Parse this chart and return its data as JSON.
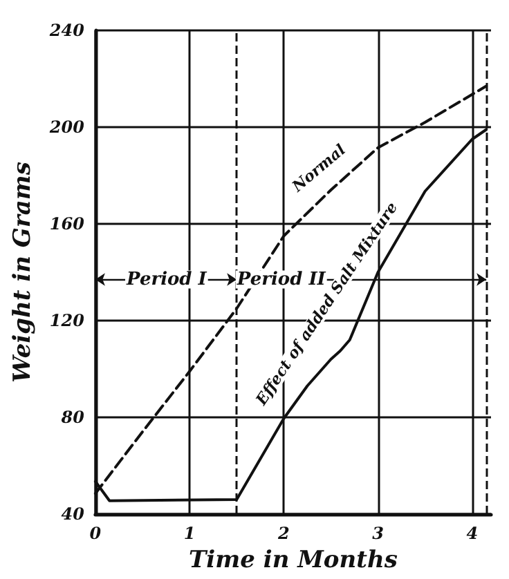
{
  "chart_data": {
    "type": "line",
    "xlabel": "Time in Months",
    "ylabel": "Weight in Grams",
    "xlim": [
      0,
      4.2
    ],
    "xticks": [
      0,
      1,
      2,
      3,
      4
    ],
    "ylim": [
      40,
      240
    ],
    "yticks": [
      40,
      80,
      120,
      160,
      200,
      240
    ],
    "grid": true,
    "marker": "none",
    "series": [
      {
        "color": "#111111",
        "line_style": "dashed",
        "x": [
          0,
          0.5,
          1,
          1.5,
          2,
          2.5,
          3,
          3.5,
          4.15
        ],
        "values": [
          48.5,
          74,
          99,
          125,
          155,
          174,
          191.5,
          202,
          217
        ]
      },
      {
        "color": "#111111",
        "line_style": "solid",
        "x": [
          0,
          0.15,
          1.5,
          2,
          2.25,
          2.5,
          2.6,
          2.7,
          3,
          3.5,
          4,
          4.15
        ],
        "values": [
          53.5,
          45.5,
          46,
          79.5,
          93,
          104,
          107.5,
          112,
          140,
          173.5,
          195,
          199
        ]
      }
    ],
    "ref_lines": [
      {
        "axis": "x",
        "value": 1.5,
        "line_style": "dashed"
      },
      {
        "axis": "x",
        "value": 4.15,
        "line_style": "dashed"
      }
    ],
    "annotations": [
      "Period I",
      "Period II",
      "Normal",
      "Effect of added Salt Mixture"
    ]
  }
}
